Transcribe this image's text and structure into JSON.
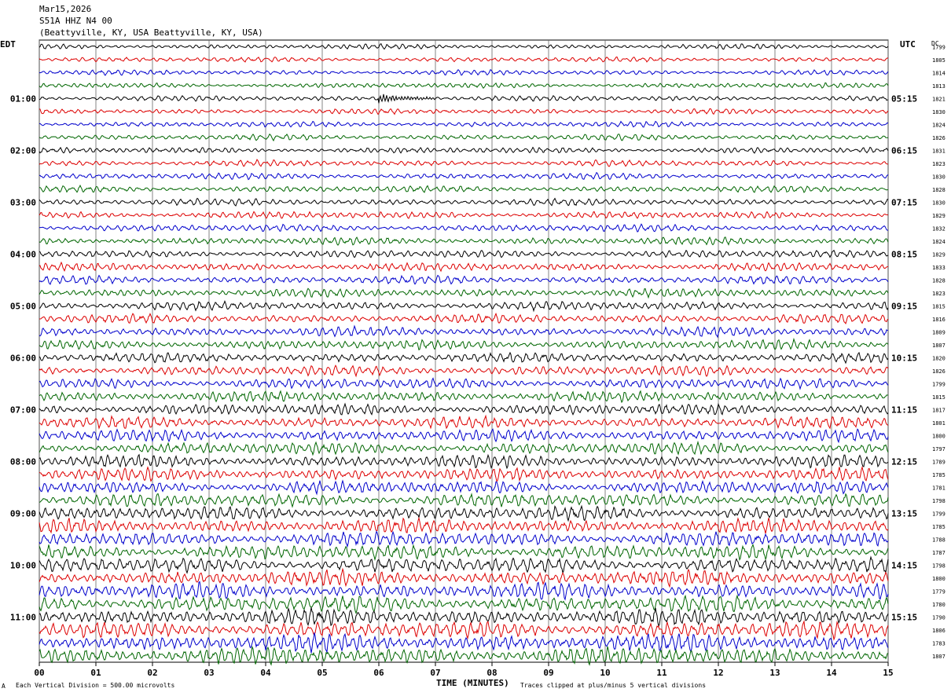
{
  "header": {
    "date": "Mar15,2026",
    "channel": "S51A HHZ N4 00",
    "location": "(Beattyville, KY, USA Beattyville, KY, USA)"
  },
  "chart_data": {
    "type": "line",
    "title": "S51A HHZ N4 00",
    "left_timezone": "EDT",
    "right_timezone": "UTC",
    "dc_label": "DC",
    "xlabel": "TIME (MINUTES)",
    "xlim": [
      0,
      15
    ],
    "x_ticks": [
      "00",
      "01",
      "02",
      "03",
      "04",
      "05",
      "06",
      "07",
      "08",
      "09",
      "10",
      "11",
      "12",
      "13",
      "14",
      "15"
    ],
    "left_hour_labels": [
      "01:00",
      "02:00",
      "03:00",
      "04:00",
      "05:00",
      "06:00",
      "07:00",
      "08:00",
      "09:00",
      "10:00",
      "11:00"
    ],
    "right_hour_labels": [
      "05:15",
      "06:15",
      "07:15",
      "08:15",
      "09:15",
      "10:15",
      "11:15",
      "12:15",
      "13:15",
      "14:15",
      "15:15"
    ],
    "hour_label_rows": [
      4,
      8,
      12,
      16,
      20,
      24,
      28,
      32,
      36,
      40,
      44
    ],
    "row_count": 48,
    "row_colors": [
      "#000000",
      "#dd0000",
      "#0000cc",
      "#006600"
    ],
    "dc_offsets": [
      1799,
      1805,
      1814,
      1813,
      1821,
      1830,
      1824,
      1826,
      1831,
      1823,
      1830,
      1828,
      1830,
      1829,
      1832,
      1824,
      1829,
      1833,
      1828,
      1823,
      1815,
      1816,
      1809,
      1807,
      1820,
      1826,
      1799,
      1815,
      1817,
      1801,
      1800,
      1797,
      1789,
      1785,
      1781,
      1798,
      1799,
      1785,
      1788,
      1787,
      1798,
      1800,
      1779,
      1780,
      1790,
      1806,
      1783,
      1807
    ],
    "amplitude_trend": "increasing amplitude from first to last row",
    "event": {
      "row": 4,
      "start_minute": 6.0,
      "end_minute": 7.0
    }
  },
  "footer": {
    "scale_note": "Each Vertical Division =  500.00 microvolts",
    "clip_note": "Traces clipped at plus/minus 5 vertical divisions",
    "corner_mark": "A"
  }
}
